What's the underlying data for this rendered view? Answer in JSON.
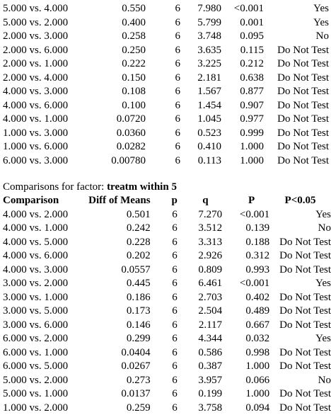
{
  "table1": {
    "rows": [
      {
        "comparison": "5.000 vs. 4.000",
        "diff": "0.550",
        "p": "6",
        "q": "7.980",
        "P": "<0.001",
        "sig": "Yes"
      },
      {
        "comparison": "5.000 vs. 2.000",
        "diff": "0.400",
        "p": "6",
        "q": "5.799",
        "P": "0.001",
        "sig": "Yes"
      },
      {
        "comparison": "2.000 vs. 3.000",
        "diff": "0.258",
        "p": "6",
        "q": "3.748",
        "P": "0.095",
        "sig": "No"
      },
      {
        "comparison": "2.000 vs. 6.000",
        "diff": "0.250",
        "p": "6",
        "q": "3.635",
        "P": "0.115",
        "sig": "Do Not Test"
      },
      {
        "comparison": "2.000 vs. 1.000",
        "diff": "0.222",
        "p": "6",
        "q": "3.225",
        "P": "0.212",
        "sig": "Do Not Test"
      },
      {
        "comparison": "2.000 vs. 4.000",
        "diff": "0.150",
        "p": "6",
        "q": "2.181",
        "P": "0.638",
        "sig": "Do Not Test"
      },
      {
        "comparison": "4.000 vs. 3.000",
        "diff": "0.108",
        "p": "6",
        "q": "1.567",
        "P": "0.877",
        "sig": "Do Not Test"
      },
      {
        "comparison": "4.000 vs. 6.000",
        "diff": "0.100",
        "p": "6",
        "q": "1.454",
        "P": "0.907",
        "sig": "Do Not Test"
      },
      {
        "comparison": "4.000 vs. 1.000",
        "diff": "0.0720",
        "p": "6",
        "q": "1.045",
        "P": "0.977",
        "sig": "Do Not Test"
      },
      {
        "comparison": "1.000 vs. 3.000",
        "diff": "0.0360",
        "p": "6",
        "q": "0.523",
        "P": "0.999",
        "sig": "Do Not Test"
      },
      {
        "comparison": "1.000 vs. 6.000",
        "diff": "0.0282",
        "p": "6",
        "q": "0.410",
        "P": "1.000",
        "sig": "Do Not Test"
      },
      {
        "comparison": "6.000 vs. 3.000",
        "diff": "0.00780",
        "p": "6",
        "q": "0.113",
        "P": "1.000",
        "sig": "Do Not Test"
      }
    ]
  },
  "section2": {
    "title_prefix": "Comparisons for factor: ",
    "title_factor": "treatm within 5",
    "headers": {
      "comparison": "Comparison",
      "diff": "Diff of Means",
      "p": "p",
      "q": "q",
      "P": "P",
      "sig": "P<0.05"
    },
    "rows": [
      {
        "comparison": "4.000 vs. 2.000",
        "diff": "0.501",
        "p": "6",
        "q": "7.270",
        "P": "<0.001",
        "sig": "Yes"
      },
      {
        "comparison": "4.000 vs. 1.000",
        "diff": "0.242",
        "p": "6",
        "q": "3.512",
        "P": "0.139",
        "sig": "No"
      },
      {
        "comparison": "4.000 vs. 5.000",
        "diff": "0.228",
        "p": "6",
        "q": "3.313",
        "P": "0.188",
        "sig": "Do Not Test"
      },
      {
        "comparison": "4.000 vs. 6.000",
        "diff": "0.202",
        "p": "6",
        "q": "2.926",
        "P": "0.312",
        "sig": "Do Not Test"
      },
      {
        "comparison": "4.000 vs. 3.000",
        "diff": "0.0557",
        "p": "6",
        "q": "0.809",
        "P": "0.993",
        "sig": "Do Not Test"
      },
      {
        "comparison": "3.000 vs. 2.000",
        "diff": "0.445",
        "p": "6",
        "q": "6.461",
        "P": "<0.001",
        "sig": "Yes"
      },
      {
        "comparison": "3.000 vs. 1.000",
        "diff": "0.186",
        "p": "6",
        "q": "2.703",
        "P": "0.402",
        "sig": "Do Not Test"
      },
      {
        "comparison": "3.000 vs. 5.000",
        "diff": "0.173",
        "p": "6",
        "q": "2.504",
        "P": "0.489",
        "sig": "Do Not Test"
      },
      {
        "comparison": "3.000 vs. 6.000",
        "diff": "0.146",
        "p": "6",
        "q": "2.117",
        "P": "0.667",
        "sig": "Do Not Test"
      },
      {
        "comparison": "6.000 vs. 2.000",
        "diff": "0.299",
        "p": "6",
        "q": "4.344",
        "P": "0.032",
        "sig": "Yes"
      },
      {
        "comparison": "6.000 vs. 1.000",
        "diff": "0.0404",
        "p": "6",
        "q": "0.586",
        "P": "0.998",
        "sig": "Do Not Test"
      },
      {
        "comparison": "6.000 vs. 5.000",
        "diff": "0.0267",
        "p": "6",
        "q": "0.387",
        "P": "1.000",
        "sig": "Do Not Test"
      },
      {
        "comparison": "5.000 vs. 2.000",
        "diff": "0.273",
        "p": "6",
        "q": "3.957",
        "P": "0.066",
        "sig": "No"
      },
      {
        "comparison": "5.000 vs. 1.000",
        "diff": "0.0137",
        "p": "6",
        "q": "0.199",
        "P": "1.000",
        "sig": "Do Not Test"
      },
      {
        "comparison": "1.000 vs. 2.000",
        "diff": "0.259",
        "p": "6",
        "q": "3.758",
        "P": "0.094",
        "sig": "Do Not Test"
      }
    ]
  }
}
